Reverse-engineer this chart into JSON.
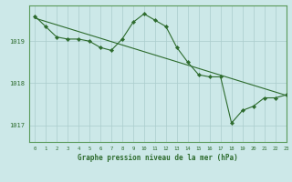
{
  "title": "Graphe pression niveau de la mer (hPa)",
  "background_color": "#cce8e8",
  "grid_color": "#aacccc",
  "line_color": "#2d6b2d",
  "xlim": [
    -0.5,
    23
  ],
  "ylim": [
    1016.6,
    1019.85
  ],
  "yticks": [
    1017,
    1018,
    1019
  ],
  "xticks": [
    0,
    1,
    2,
    3,
    4,
    5,
    6,
    7,
    8,
    9,
    10,
    11,
    12,
    13,
    14,
    15,
    16,
    17,
    18,
    19,
    20,
    21,
    22,
    23
  ],
  "s1_x": [
    0,
    1,
    2,
    3,
    4,
    5,
    6,
    7,
    8,
    9,
    10,
    11,
    12,
    13,
    14,
    15,
    16,
    17,
    18,
    19,
    20,
    21,
    22,
    23
  ],
  "s1_y": [
    1019.55,
    1019.47,
    1019.39,
    1019.31,
    1019.23,
    1019.15,
    1019.07,
    1018.99,
    1018.91,
    1018.83,
    1018.75,
    1018.67,
    1018.59,
    1018.51,
    1018.43,
    1018.35,
    1018.27,
    1018.19,
    1018.11,
    1018.03,
    1017.95,
    1017.87,
    1017.79,
    1017.71
  ],
  "s2_x": [
    0,
    1,
    2,
    3,
    4,
    5,
    6,
    7,
    8,
    9,
    10,
    11,
    12,
    13,
    14,
    15,
    16,
    17,
    18,
    19,
    20,
    21,
    22,
    23
  ],
  "s2_y": [
    1019.6,
    1019.35,
    1019.1,
    1019.05,
    1019.05,
    1019.0,
    1018.85,
    1018.78,
    1019.05,
    1019.45,
    1019.65,
    1019.5,
    1019.35,
    1018.85,
    1018.5,
    1018.2,
    1018.15,
    1018.15,
    1017.05,
    1017.35,
    1017.45,
    1017.65,
    1017.65,
    1017.72
  ]
}
